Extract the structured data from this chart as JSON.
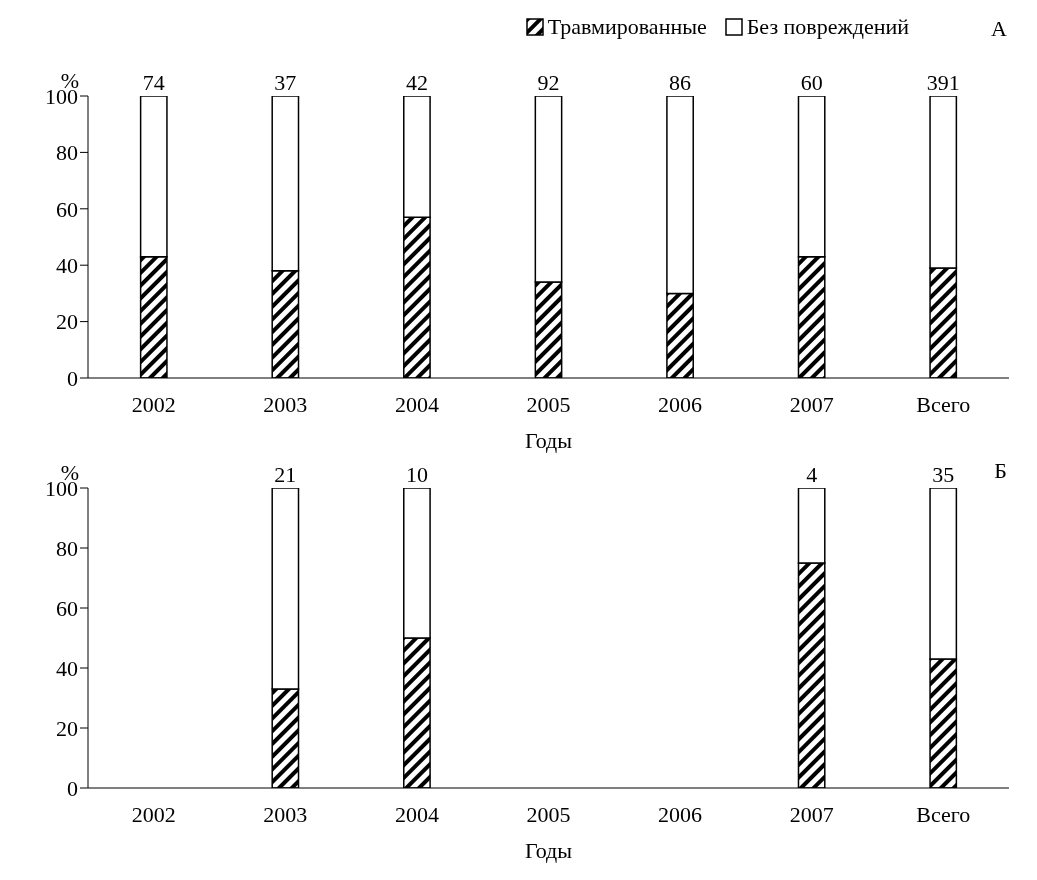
{
  "chart_data": [
    {
      "type": "bar",
      "title": "А",
      "xlabel": "Годы",
      "ylabel": "%",
      "categories": [
        "2002",
        "2003",
        "2004",
        "2005",
        "2006",
        "2007",
        "Всего"
      ],
      "stacked": true,
      "legend": "top right",
      "ylim": [
        0,
        100
      ],
      "yticks": [
        0,
        20,
        40,
        60,
        80,
        100
      ],
      "series": [
        {
          "name": "Травмированные",
          "color": "#000000",
          "values": [
            43,
            38,
            57,
            34,
            30,
            43,
            39
          ]
        },
        {
          "name": "Без повреждений",
          "color": "#ffffff",
          "values": [
            57,
            62,
            43,
            66,
            70,
            57,
            61
          ]
        }
      ],
      "annotations": [
        {
          "text": "74",
          "x": "2002",
          "y": 100
        },
        {
          "text": "37",
          "x": "2003",
          "y": 100
        },
        {
          "text": "42",
          "x": "2004",
          "y": 100
        },
        {
          "text": "92",
          "x": "2005",
          "y": 100
        },
        {
          "text": "86",
          "x": "2006",
          "y": 100
        },
        {
          "text": "60",
          "x": "2007",
          "y": 100
        },
        {
          "text": "391",
          "x": "Всего",
          "y": 100
        }
      ]
    },
    {
      "type": "bar",
      "title": "Б",
      "xlabel": "Годы",
      "ylabel": "%",
      "categories": [
        "2002",
        "2003",
        "2004",
        "2005",
        "2006",
        "2007",
        "Всего"
      ],
      "stacked": true,
      "ylim": [
        0,
        100
      ],
      "yticks": [
        0,
        20,
        40,
        60,
        80,
        100
      ],
      "series": [
        {
          "color": "#000000",
          "values": [
            null,
            33,
            50,
            null,
            null,
            75,
            43
          ]
        },
        {
          "color": "#ffffff",
          "values": [
            null,
            67,
            50,
            null,
            null,
            25,
            57
          ]
        }
      ],
      "annotations": [
        {
          "text": "21",
          "x": "2003",
          "y": 100
        },
        {
          "text": "10",
          "x": "2004",
          "y": 100
        },
        {
          "text": "4",
          "x": "2007",
          "y": 100
        },
        {
          "text": "35",
          "x": "Всего",
          "y": 100
        }
      ]
    }
  ]
}
